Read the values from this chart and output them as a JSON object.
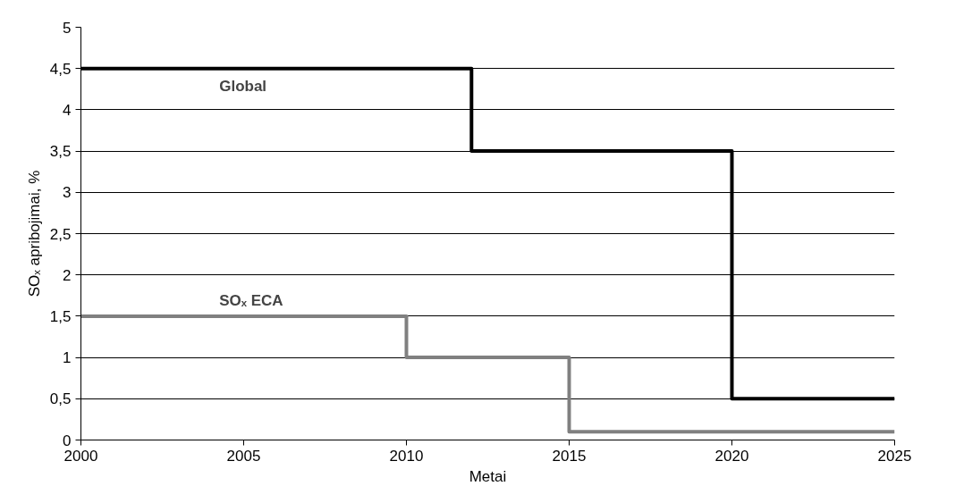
{
  "chart_data": {
    "type": "step",
    "xlabel": "Metai",
    "ylabel": "SOₓ apribojimai, %",
    "series": [
      {
        "name": "Global",
        "color": "#000000",
        "x": [
          2000,
          2012,
          2020,
          2025
        ],
        "values": [
          4.5,
          3.5,
          0.5,
          0.5
        ]
      },
      {
        "name": "SOₓ ECA",
        "color": "#808080",
        "x": [
          2000,
          2010,
          2015,
          2025
        ],
        "values": [
          1.5,
          1.0,
          0.1,
          0.1
        ]
      }
    ],
    "xlim": [
      2000,
      2025
    ],
    "xticks": [
      2000,
      2005,
      2010,
      2015,
      2020,
      2025
    ],
    "ylim": [
      0,
      5
    ],
    "yticks": [
      0,
      {
        "value": 0.5,
        "label": "0,5"
      },
      1,
      {
        "value": 1.5,
        "label": "1,5"
      },
      2,
      {
        "value": 2.5,
        "label": "2,5"
      },
      3,
      {
        "value": 3.5,
        "label": "3,5"
      },
      4,
      {
        "value": 4.5,
        "label": "4,5"
      },
      5
    ],
    "grid": "y",
    "line_style": "solid",
    "marker": "none"
  }
}
